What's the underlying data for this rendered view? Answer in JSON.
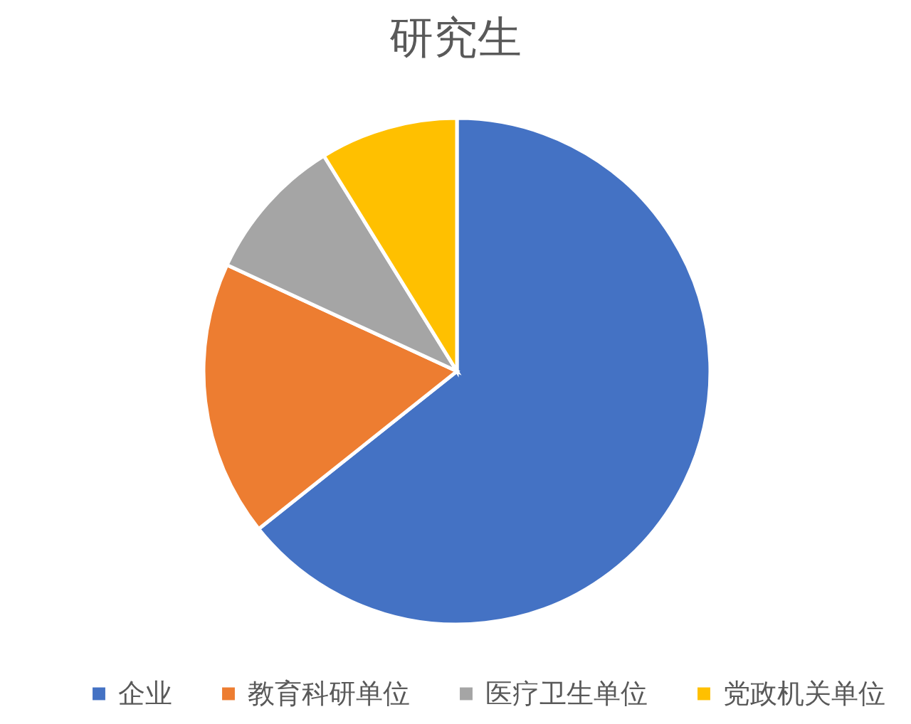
{
  "chart_data": {
    "type": "pie",
    "title": "研究生",
    "categories": [
      "企业",
      "教育科研单位",
      "医疗卫生单位",
      "党政机关单位"
    ],
    "values": [
      64.3,
      17.6,
      9.3,
      8.8
    ],
    "colors": [
      "#4472c4",
      "#ed7d31",
      "#a5a5a5",
      "#ffc000"
    ],
    "legend": "bottom"
  }
}
